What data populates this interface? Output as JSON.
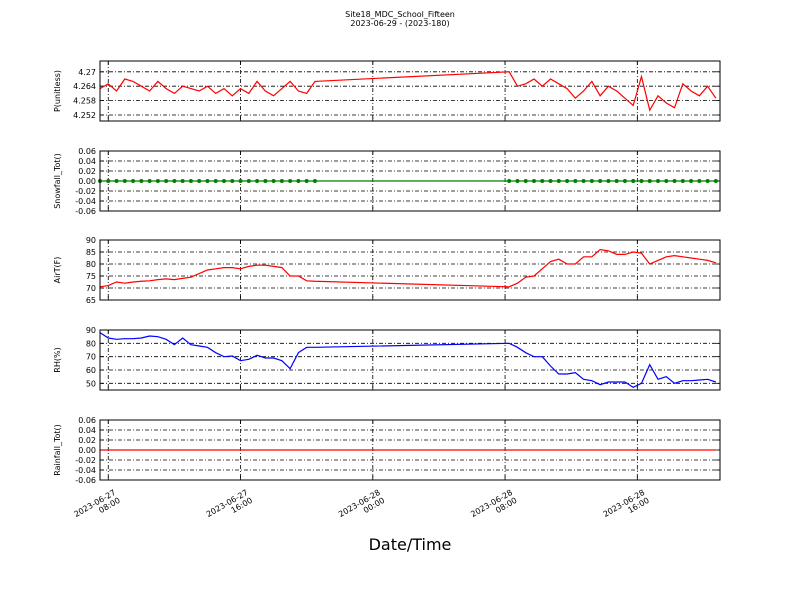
{
  "chart_data": {
    "type": "line",
    "title": "Site18_MDC_School_Fifteen",
    "subtitle": "2023-06-29 - (2023-180)",
    "xlabel": "Date/Time",
    "grid": true,
    "xlim": [
      "2023-06-27 07:30",
      "2023-06-28 21:00"
    ],
    "xticks": [
      "2023-06-27 08:00",
      "2023-06-27 16:00",
      "2023-06-28 00:00",
      "2023-06-28 08:00",
      "2023-06-28 16:00"
    ],
    "x": [
      "2023-06-27 07:30",
      "2023-06-27 08:00",
      "2023-06-27 08:30",
      "2023-06-27 09:00",
      "2023-06-27 09:30",
      "2023-06-27 10:00",
      "2023-06-27 10:30",
      "2023-06-27 11:00",
      "2023-06-27 11:30",
      "2023-06-27 12:00",
      "2023-06-27 12:30",
      "2023-06-27 13:00",
      "2023-06-27 13:30",
      "2023-06-27 14:00",
      "2023-06-27 14:30",
      "2023-06-27 15:00",
      "2023-06-27 15:30",
      "2023-06-27 16:00",
      "2023-06-27 16:30",
      "2023-06-27 17:00",
      "2023-06-27 17:30",
      "2023-06-27 18:00",
      "2023-06-27 18:30",
      "2023-06-27 19:00",
      "2023-06-27 19:30",
      "2023-06-27 20:00",
      "2023-06-27 20:30",
      "2023-06-28 08:15",
      "2023-06-28 08:45",
      "2023-06-28 09:15",
      "2023-06-28 09:45",
      "2023-06-28 10:15",
      "2023-06-28 10:45",
      "2023-06-28 11:15",
      "2023-06-28 11:45",
      "2023-06-28 12:15",
      "2023-06-28 12:45",
      "2023-06-28 13:15",
      "2023-06-28 13:45",
      "2023-06-28 14:15",
      "2023-06-28 14:45",
      "2023-06-28 15:15",
      "2023-06-28 15:45",
      "2023-06-28 16:15",
      "2023-06-28 16:45",
      "2023-06-28 17:15",
      "2023-06-28 17:45",
      "2023-06-28 18:15",
      "2023-06-28 18:45",
      "2023-06-28 19:15",
      "2023-06-28 19:45",
      "2023-06-28 20:15",
      "2023-06-28 20:45"
    ],
    "panels": [
      {
        "ylabel": "P(unitless)",
        "ylim": [
          4.2495,
          4.2745
        ],
        "yticks": [
          4.252,
          4.258,
          4.264,
          4.27
        ],
        "series": [
          {
            "color": "#ff0000",
            "values": [
              4.263,
              4.265,
              4.262,
              4.267,
              4.266,
              4.264,
              4.262,
              4.266,
              4.263,
              4.261,
              4.264,
              4.263,
              4.262,
              4.264,
              4.261,
              4.263,
              4.26,
              4.263,
              4.261,
              4.266,
              4.262,
              4.26,
              4.263,
              4.266,
              4.262,
              4.261,
              4.266,
              4.27,
              4.264,
              4.265,
              4.267,
              4.264,
              4.267,
              4.265,
              4.263,
              4.259,
              4.262,
              4.266,
              4.26,
              4.264,
              4.262,
              4.259,
              4.256,
              4.268,
              4.254,
              4.26,
              4.257,
              4.255,
              4.265,
              4.262,
              4.26,
              4.264,
              4.259
            ]
          }
        ]
      },
      {
        "ylabel": "Snowfall_Tot()",
        "ylim": [
          -0.06,
          0.06
        ],
        "yticks": [
          -0.06,
          -0.04,
          -0.02,
          {
            "value": 0,
            "label": "0.00"
          },
          0.02,
          0.04,
          0.06
        ],
        "series": [
          {
            "color": "#008000",
            "marker": "o",
            "values": [
              0,
              0,
              0,
              0,
              0,
              0,
              0,
              0,
              0,
              0,
              0,
              0,
              0,
              0,
              0,
              0,
              0,
              0,
              0,
              0,
              0,
              0,
              0,
              0,
              0,
              0,
              0,
              0,
              0,
              0,
              0,
              0,
              0,
              0,
              0,
              0,
              0,
              0,
              0,
              0,
              0,
              0,
              0,
              0,
              0,
              0,
              0,
              0,
              0,
              0,
              0,
              0,
              0
            ]
          }
        ]
      },
      {
        "ylabel": "AirT(F)",
        "ylim": [
          65,
          90
        ],
        "yticks": [
          65,
          70,
          75,
          80,
          85,
          90
        ],
        "series": [
          {
            "color": "#ff0000",
            "values": [
              70.5,
              71,
              72.5,
              72,
              72.5,
              72.8,
              73,
              73.5,
              73.8,
              73.5,
              74,
              74.5,
              76,
              77.5,
              78,
              78.5,
              78.5,
              78,
              79,
              79.5,
              79.5,
              79,
              78.5,
              75,
              75,
              73,
              72.8,
              70.5,
              72,
              74.5,
              75,
              78,
              81,
              82,
              80,
              80,
              83,
              83,
              86,
              85.5,
              84,
              84,
              85,
              84.5,
              80,
              81.5,
              83,
              83.5,
              83,
              82.5,
              82,
              81.5,
              80.5
            ]
          }
        ]
      },
      {
        "ylabel": "RH(%)",
        "ylim": [
          45,
          90
        ],
        "yticks": [
          50,
          60,
          70,
          80,
          90
        ],
        "series": [
          {
            "color": "#0000ff",
            "values": [
              88,
              84,
              83,
              83.5,
              83.5,
              84,
              85.5,
              85,
              83,
              79,
              84,
              79,
              78,
              77,
              73,
              70,
              70.5,
              67,
              68,
              71,
              69,
              69,
              67,
              61,
              73,
              77,
              77,
              80,
              77,
              73,
              70,
              70,
              63,
              57,
              57,
              58,
              53,
              52,
              49,
              51,
              51,
              51,
              47,
              50,
              64,
              53,
              55,
              50,
              52,
              52,
              52.5,
              53,
              51
            ]
          }
        ]
      },
      {
        "ylabel": "Rainfall_Tot()",
        "ylim": [
          -0.06,
          0.06
        ],
        "yticks": [
          -0.06,
          -0.04,
          -0.02,
          {
            "value": 0,
            "label": "0.00"
          },
          0.02,
          0.04,
          0.06
        ],
        "series": [
          {
            "color": "#ff0000",
            "values": [
              0,
              0,
              0,
              0,
              0,
              0,
              0,
              0,
              0,
              0,
              0,
              0,
              0,
              0,
              0,
              0,
              0,
              0,
              0,
              0,
              0,
              0,
              0,
              0,
              0,
              0,
              0,
              0,
              0,
              0,
              0,
              0,
              0,
              0,
              0,
              0,
              0,
              0,
              0,
              0,
              0,
              0,
              0,
              0,
              0,
              0,
              0,
              0,
              0,
              0,
              0,
              0,
              0
            ]
          }
        ]
      }
    ]
  }
}
